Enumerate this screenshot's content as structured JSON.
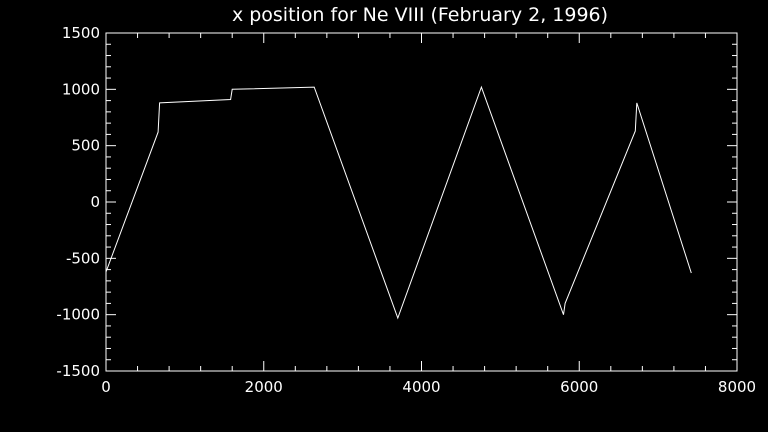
{
  "chart_data": {
    "type": "line",
    "title": "x position for Ne VIII (February 2, 1996)",
    "xlabel": "",
    "ylabel": "",
    "xlim": [
      0,
      8000
    ],
    "ylim": [
      -1500,
      1500
    ],
    "x_ticks": [
      0,
      2000,
      4000,
      6000,
      8000
    ],
    "x_tick_labels": [
      "0",
      "2000",
      "4000",
      "6000",
      "8000"
    ],
    "y_ticks": [
      -1500,
      -1000,
      -500,
      0,
      500,
      1000,
      1500
    ],
    "y_tick_labels": [
      "-1500",
      "-1000",
      "-500",
      "0",
      "500",
      "1000",
      "1500"
    ],
    "grid": false,
    "colors": {
      "background": "#000000",
      "foreground": "#ffffff"
    },
    "series": [
      {
        "x": [
          0,
          660,
          680,
          1580,
          1600,
          2640,
          3700,
          4760,
          5800,
          5820,
          6710,
          6730,
          7420
        ],
        "y": [
          -620,
          620,
          880,
          910,
          1000,
          1020,
          -1030,
          1020,
          -1000,
          -900,
          630,
          880,
          -630
        ]
      }
    ]
  }
}
